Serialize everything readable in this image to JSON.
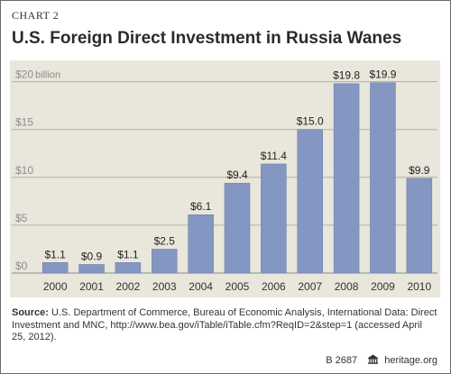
{
  "chart_label": "CHART 2",
  "chart_data": {
    "type": "bar",
    "title": "U.S. Foreign Direct Investment in Russia Wanes",
    "xlabel": "",
    "ylabel": "",
    "categories": [
      "2000",
      "2001",
      "2002",
      "2003",
      "2004",
      "2005",
      "2006",
      "2007",
      "2008",
      "2009",
      "2010"
    ],
    "values": [
      1.1,
      0.9,
      1.1,
      2.5,
      6.1,
      9.4,
      11.4,
      15.0,
      19.8,
      19.9,
      9.9
    ],
    "data_labels": [
      "$1.1",
      "$0.9",
      "$1.1",
      "$2.5",
      "$6.1",
      "$9.4",
      "$11.4",
      "$15.0",
      "$19.8",
      "$19.9",
      "$9.9"
    ],
    "y_ticks": [
      0,
      5,
      10,
      15,
      20
    ],
    "y_tick_labels": [
      "$0",
      "$5",
      "$10",
      "$15",
      "$20"
    ],
    "y_unit_label": "billion",
    "ylim": [
      0,
      21
    ],
    "grid": true,
    "bar_color": "#8496c2"
  },
  "source": {
    "label": "Source:",
    "text": " U.S. Department of Commerce, Bureau of Economic Analysis, International Data: Direct Investment and MNC, http://www.bea.gov/iTable/iTable.cfm?ReqID=2&step=1 (accessed April 25, 2012)."
  },
  "footer": {
    "code": "B 2687",
    "brand": "heritage.org",
    "logo_icon": "heritage-house-icon"
  }
}
